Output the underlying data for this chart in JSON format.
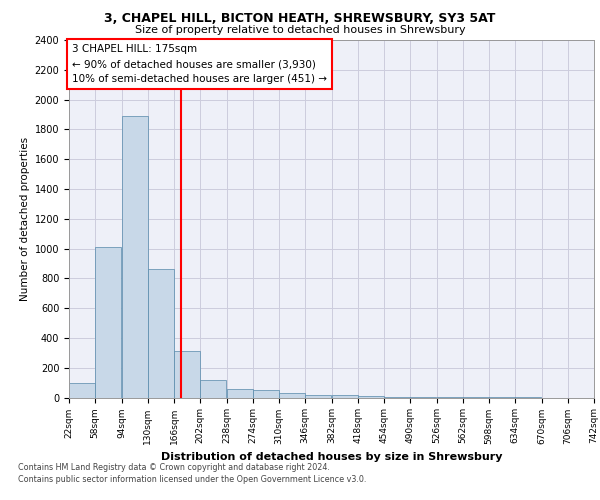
{
  "title1": "3, CHAPEL HILL, BICTON HEATH, SHREWSBURY, SY3 5AT",
  "title2": "Size of property relative to detached houses in Shrewsbury",
  "xlabel": "Distribution of detached houses by size in Shrewsbury",
  "ylabel": "Number of detached properties",
  "bar_edges": [
    22,
    58,
    94,
    130,
    166,
    202,
    238,
    274,
    310,
    346,
    382,
    418,
    454,
    490,
    526,
    562,
    598,
    634,
    670,
    706,
    742
  ],
  "bar_values": [
    100,
    1010,
    1890,
    860,
    315,
    120,
    58,
    52,
    30,
    20,
    15,
    10,
    5,
    3,
    2,
    1,
    1,
    1,
    0,
    0
  ],
  "bar_color": "#c8d8e8",
  "bar_edge_color": "#5588aa",
  "vline_x": 175,
  "vline_color": "red",
  "annotation_title": "3 CHAPEL HILL: 175sqm",
  "annotation_line1": "← 90% of detached houses are smaller (3,930)",
  "annotation_line2": "10% of semi-detached houses are larger (451) →",
  "annotation_box_color": "white",
  "annotation_box_edge": "red",
  "ylim": [
    0,
    2400
  ],
  "yticks": [
    0,
    200,
    400,
    600,
    800,
    1000,
    1200,
    1400,
    1600,
    1800,
    2000,
    2200,
    2400
  ],
  "grid_color": "#ccccdd",
  "background_color": "#eef0f8",
  "footer1": "Contains HM Land Registry data © Crown copyright and database right 2024.",
  "footer2": "Contains public sector information licensed under the Open Government Licence v3.0."
}
